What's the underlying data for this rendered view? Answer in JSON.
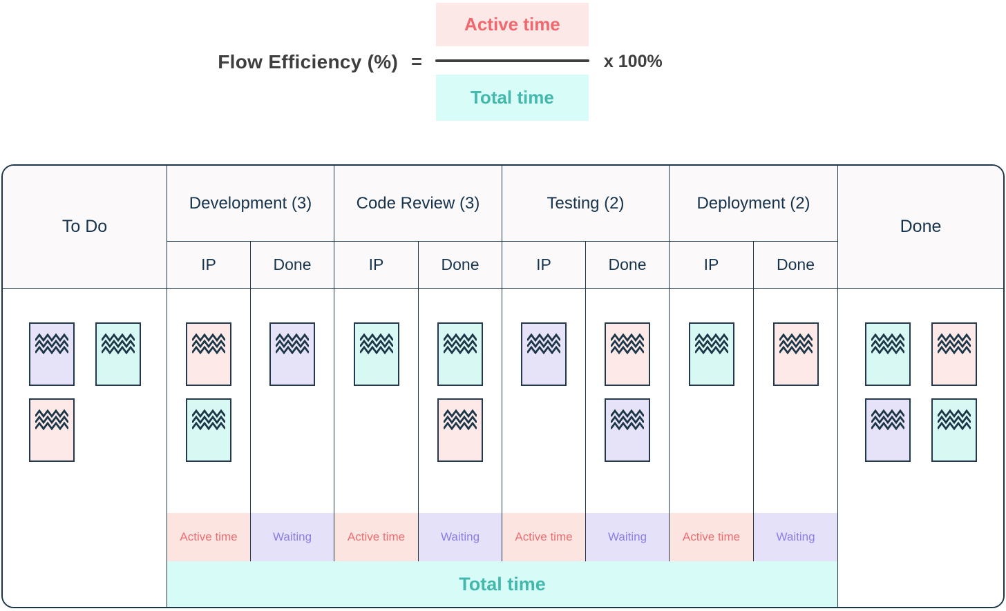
{
  "formula": {
    "label": "Flow Efficiency (%)",
    "equals_sign": "=",
    "numerator": "Active time",
    "denominator": "Total time",
    "multiplier": "x 100%"
  },
  "board": {
    "todo": {
      "label": "To Do",
      "cards": [
        "lavender",
        "cyan",
        "pink"
      ]
    },
    "stages": [
      {
        "label": "Development (3)",
        "ip_label": "IP",
        "done_label": "Done",
        "ip_cards": [
          "pink",
          "cyan"
        ],
        "done_cards": [
          "lavender"
        ]
      },
      {
        "label": "Code Review (3)",
        "ip_label": "IP",
        "done_label": "Done",
        "ip_cards": [
          "cyan"
        ],
        "done_cards": [
          "cyan",
          "pink"
        ]
      },
      {
        "label": "Testing (2)",
        "ip_label": "IP",
        "done_label": "Done",
        "ip_cards": [
          "lavender"
        ],
        "done_cards": [
          "pink",
          "lavender"
        ]
      },
      {
        "label": "Deployment (2)",
        "ip_label": "IP",
        "done_label": "Done",
        "ip_cards": [
          "cyan"
        ],
        "done_cards": [
          "pink"
        ]
      }
    ],
    "done": {
      "label": "Done",
      "cards": [
        "cyan",
        "pink",
        "lavender",
        "cyan"
      ]
    },
    "footer": {
      "active_time_label": "Active time",
      "waiting_label": "Waiting",
      "total_time_label": "Total time"
    }
  },
  "colors": {
    "accent_coral": "#f2676d",
    "accent_teal": "#44b8ad",
    "accent_purple": "#8b80e9",
    "border_navy": "#1c3648",
    "card_lavender": "#e6e3f9",
    "card_cyan": "#d8f8f4",
    "card_pink": "#fdeae8",
    "formula_numerator_bg": "#fde8e8",
    "formula_denominator_bg": "#d8fcf7",
    "footer_active_bg": "#fce4e1",
    "footer_waiting_bg": "#e5e1f8",
    "total_bar_bg": "#d7fbf7",
    "header_bg": "#fbf9fa"
  }
}
